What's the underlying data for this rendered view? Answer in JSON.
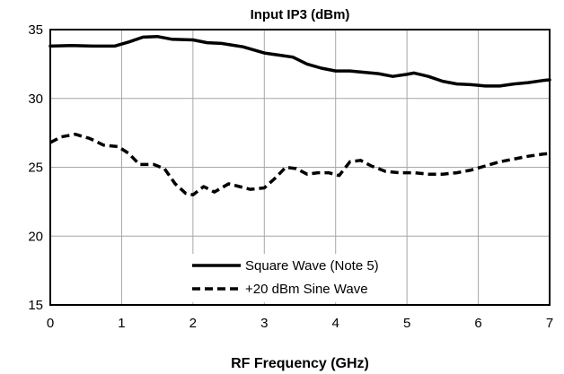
{
  "chart_data": {
    "type": "line",
    "title": "Input IP3 (dBm)",
    "xlabel": "RF Frequency (GHz)",
    "ylabel": "",
    "xlim": [
      0,
      7
    ],
    "ylim": [
      15,
      35
    ],
    "xticks": [
      "0",
      "1",
      "2",
      "3",
      "4",
      "5",
      "6",
      "7"
    ],
    "yticks": [
      "15",
      "20",
      "25",
      "30",
      "35"
    ],
    "grid": true,
    "legend_position": "lower-center",
    "series": [
      {
        "name": "Square Wave (Note 5)",
        "style": "solid",
        "x": [
          0,
          0.3,
          0.6,
          0.9,
          1.1,
          1.3,
          1.5,
          1.7,
          2.0,
          2.2,
          2.4,
          2.7,
          3.0,
          3.2,
          3.4,
          3.6,
          3.8,
          4.0,
          4.2,
          4.4,
          4.6,
          4.8,
          5.0,
          5.1,
          5.3,
          5.5,
          5.7,
          5.9,
          6.1,
          6.3,
          6.5,
          6.7,
          6.9,
          7.0
        ],
        "values": [
          33.8,
          33.85,
          33.8,
          33.8,
          34.1,
          34.45,
          34.5,
          34.3,
          34.25,
          34.05,
          34.0,
          33.75,
          33.3,
          33.15,
          33.0,
          32.5,
          32.2,
          32.0,
          32.0,
          31.9,
          31.8,
          31.6,
          31.75,
          31.85,
          31.6,
          31.25,
          31.05,
          31.0,
          30.9,
          30.9,
          31.05,
          31.15,
          31.3,
          31.35
        ]
      },
      {
        "name": "+20 dBm Sine Wave",
        "style": "dashed",
        "x": [
          0,
          0.15,
          0.35,
          0.55,
          0.75,
          0.95,
          1.1,
          1.25,
          1.45,
          1.6,
          1.75,
          1.9,
          2.0,
          2.15,
          2.3,
          2.5,
          2.65,
          2.8,
          3.0,
          3.15,
          3.3,
          3.45,
          3.6,
          3.75,
          3.9,
          4.05,
          4.2,
          4.35,
          4.5,
          4.7,
          4.9,
          5.1,
          5.3,
          5.5,
          5.7,
          5.9,
          6.1,
          6.3,
          6.5,
          6.7,
          6.9,
          7.0
        ],
        "values": [
          26.8,
          27.2,
          27.4,
          27.1,
          26.6,
          26.5,
          26.0,
          25.2,
          25.2,
          24.9,
          23.8,
          23.1,
          23.0,
          23.6,
          23.2,
          23.8,
          23.6,
          23.4,
          23.5,
          24.2,
          25.0,
          24.9,
          24.5,
          24.6,
          24.6,
          24.4,
          25.4,
          25.5,
          25.1,
          24.7,
          24.6,
          24.6,
          24.5,
          24.5,
          24.6,
          24.8,
          25.1,
          25.4,
          25.6,
          25.8,
          25.95,
          26.0
        ]
      }
    ]
  }
}
